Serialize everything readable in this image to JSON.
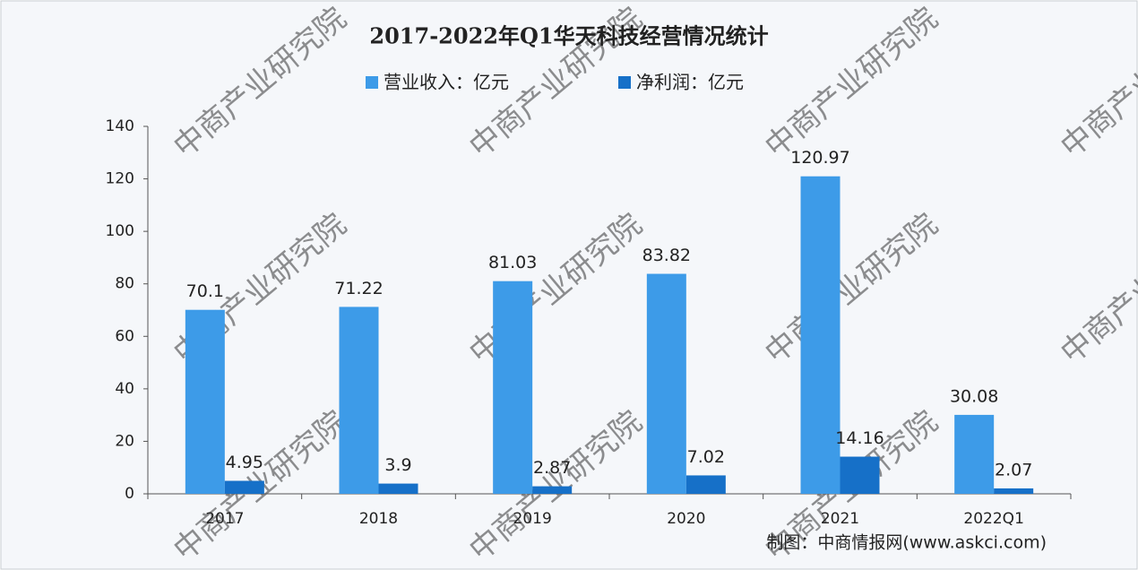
{
  "chart_data": {
    "type": "bar",
    "title": "2017-2022年Q1华天科技经营情况统计",
    "categories": [
      "2017",
      "2018",
      "2019",
      "2020",
      "2021",
      "2022Q1"
    ],
    "series": [
      {
        "name": "营业收入：亿元",
        "color": "#3d9be8",
        "values": [
          70.1,
          71.22,
          81.03,
          83.82,
          120.97,
          30.08
        ]
      },
      {
        "name": "净利润：亿元",
        "color": "#1670c8",
        "values": [
          4.95,
          3.9,
          2.87,
          7.02,
          14.16,
          2.07
        ]
      }
    ],
    "ylim": [
      0,
      140
    ],
    "yticks": [
      0,
      20,
      40,
      60,
      80,
      100,
      120,
      140
    ],
    "legend": "top",
    "source": "制图：中商情报网(www.askci.com)",
    "watermark": "中商产业研究院"
  }
}
